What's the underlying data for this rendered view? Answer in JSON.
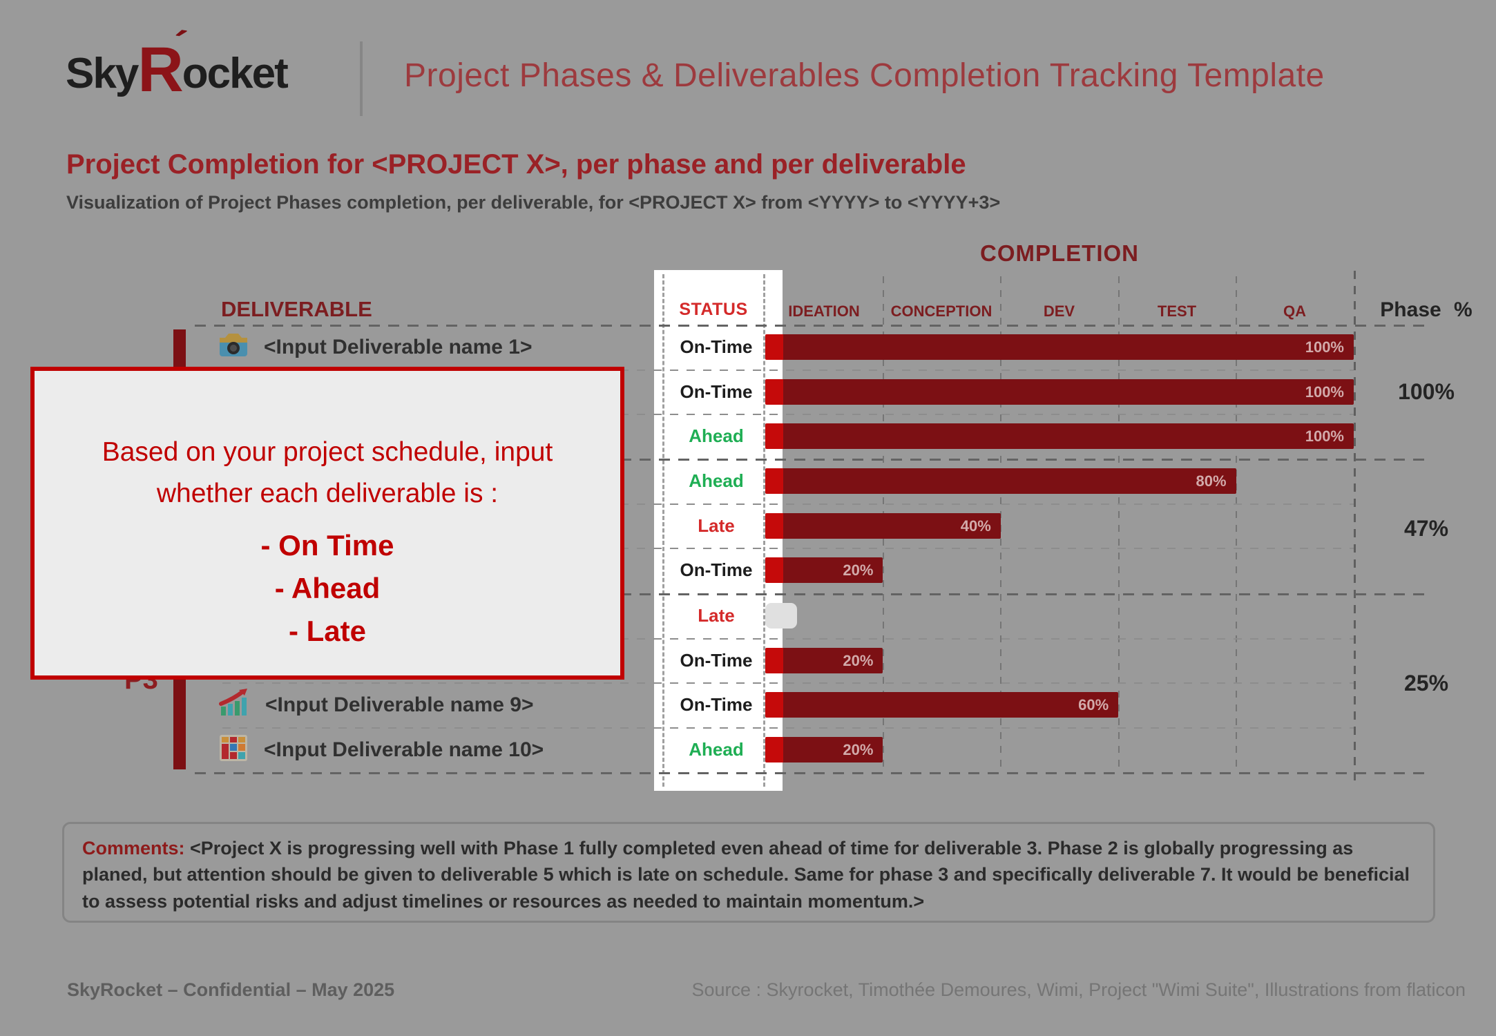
{
  "header": {
    "logo": {
      "prefix": "Sky",
      "accent_letter": "R",
      "suffix": "ocket",
      "accent_mark": "´"
    },
    "title": "Project Phases & Deliverables Completion Tracking Template"
  },
  "intro": {
    "heading": "Project Completion for <PROJECT X>, per phase and per deliverable",
    "subheading": "Visualization of Project Phases completion, per deliverable, for <PROJECT X> from <YYYY> to <YYYY+3>"
  },
  "chart_data": {
    "type": "bar",
    "title": "COMPLETION",
    "deliverable_header": "DELIVERABLE",
    "status_header": "STATUS",
    "phase_header": "Phase %",
    "columns": [
      "IDEATION",
      "CONCEPTION",
      "DEV",
      "TEST",
      "QA"
    ],
    "xlim": [
      0,
      100
    ],
    "rows": [
      {
        "deliverable": "<Input Deliverable name 1>",
        "icon": "camera-icon",
        "status": "On-Time",
        "completion_pct": 100,
        "bar_label": "100%"
      },
      {
        "deliverable": "",
        "icon": "",
        "status": "On-Time",
        "completion_pct": 100,
        "bar_label": "100%"
      },
      {
        "deliverable": "",
        "icon": "",
        "status": "Ahead",
        "completion_pct": 100,
        "bar_label": "100%"
      },
      {
        "deliverable": "",
        "icon": "",
        "status": "Ahead",
        "completion_pct": 80,
        "bar_label": "80%"
      },
      {
        "deliverable": "",
        "icon": "",
        "status": "Late",
        "completion_pct": 40,
        "bar_label": "40%"
      },
      {
        "deliverable": "",
        "icon": "",
        "status": "On-Time",
        "completion_pct": 20,
        "bar_label": "20%"
      },
      {
        "deliverable": "",
        "icon": "",
        "status": "Late",
        "completion_pct": 0,
        "bar_label": ""
      },
      {
        "deliverable": "",
        "icon": "",
        "status": "On-Time",
        "completion_pct": 20,
        "bar_label": "20%"
      },
      {
        "deliverable": "<Input Deliverable name 9>",
        "icon": "growth-chart-icon",
        "status": "On-Time",
        "completion_pct": 60,
        "bar_label": "60%"
      },
      {
        "deliverable": "<Input Deliverable name 10>",
        "icon": "dashboard-icon",
        "status": "Ahead",
        "completion_pct": 20,
        "bar_label": "20%"
      }
    ],
    "phases": [
      {
        "label": "",
        "pct_label": "100%",
        "row_span": [
          1,
          3
        ]
      },
      {
        "label": "",
        "pct_label": "47%",
        "row_span": [
          4,
          6
        ]
      },
      {
        "label": "P3",
        "pct_label": "25%",
        "row_span": [
          7,
          10
        ]
      }
    ]
  },
  "callout": {
    "line1": "Based on your project schedule, input",
    "line2": "whether each deliverable is :",
    "options": [
      "- On Time",
      "- Ahead",
      "- Late"
    ]
  },
  "comments": {
    "label": "Comments:",
    "text": " <Project X is progressing well with Phase 1 fully completed even ahead of time for deliverable 3. Phase 2 is globally progressing as planed, but attention should be given to deliverable 5 which is late on schedule. Same for phase 3 and specifically deliverable 7. It would be beneficial to assess potential risks and adjust timelines or resources as needed to maintain momentum.>"
  },
  "footer": {
    "left": "SkyRocket – Confidential – May 2025",
    "right": "Source : Skyrocket, Timothée Demoures, Wimi, Project \"Wimi Suite\", Illustrations from flaticon"
  },
  "colors": {
    "page-bg": "#9a9a9a",
    "accent-red": "#c00000",
    "bar-dim": "#7c1014",
    "bar-bright": "#c50a0a",
    "title-red": "#9d3a3e",
    "heading-red": "#9a2126",
    "dark-red": "#7c1d20",
    "status-red": "#d42a2a",
    "status-green": "#1fae54",
    "band-white": "#ffffff",
    "callout-bg": "#ececec"
  }
}
